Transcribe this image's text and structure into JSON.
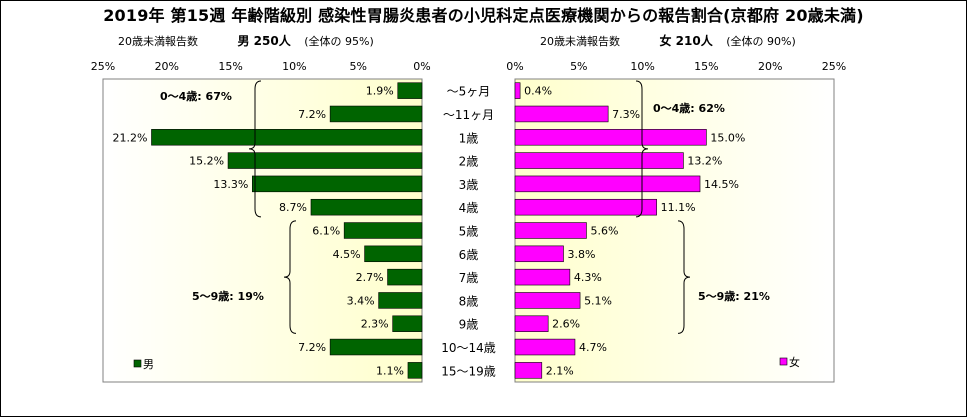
{
  "title": "2019年 第15週 年齢階級別 感染性胃腸炎患者の小児科定点医療機関からの報告割合(京都府 20歳未満)",
  "male_header": {
    "caption": "20歳未満報告数",
    "label": "男 250人",
    "ratio": "(全体の 95%)"
  },
  "female_header": {
    "caption": "20歳未満報告数",
    "label": "女 210人",
    "ratio": "(全体の 90%)"
  },
  "colors": {
    "male_bar": "#006400",
    "female_bar": "#ff00ff",
    "plot_bg": "#ffffcc"
  },
  "chart_data": [
    {
      "type": "bar",
      "orientation": "horizontal",
      "x_direction": "reversed",
      "categories": [
        "〜5ヶ月",
        "〜11ヶ月",
        "1歳",
        "2歳",
        "3歳",
        "4歳",
        "5歳",
        "6歳",
        "7歳",
        "8歳",
        "9歳",
        "10〜14歳",
        "15〜19歳"
      ],
      "series": [
        {
          "name": "男",
          "values": [
            1.9,
            7.2,
            21.2,
            15.2,
            13.3,
            8.7,
            6.1,
            4.5,
            2.7,
            3.4,
            2.3,
            7.2,
            1.1
          ],
          "labels": [
            "1.9%",
            "7.2%",
            "21.2%",
            "15.2%",
            "13.3%",
            "8.7%",
            "6.1%",
            "4.5%",
            "2.7%",
            "3.4%",
            "2.3%",
            "7.2%",
            "1.1%"
          ]
        }
      ],
      "xlim": [
        0,
        25
      ],
      "xticks": [
        "25%",
        "20%",
        "15%",
        "10%",
        "5%",
        "0%"
      ],
      "grid": false,
      "legend": "bottom-left",
      "annotations": [
        "0〜4歳: 67%",
        "5〜9歳: 19%"
      ]
    },
    {
      "type": "bar",
      "orientation": "horizontal",
      "categories": [
        "〜5ヶ月",
        "〜11ヶ月",
        "1歳",
        "2歳",
        "3歳",
        "4歳",
        "5歳",
        "6歳",
        "7歳",
        "8歳",
        "9歳",
        "10〜14歳",
        "15〜19歳"
      ],
      "series": [
        {
          "name": "女",
          "values": [
            0.4,
            7.3,
            15.0,
            13.2,
            14.5,
            11.1,
            5.6,
            3.8,
            4.3,
            5.1,
            2.6,
            4.7,
            2.1
          ],
          "labels": [
            "0.4%",
            "7.3%",
            "15.0%",
            "13.2%",
            "14.5%",
            "11.1%",
            "5.6%",
            "3.8%",
            "4.3%",
            "5.1%",
            "2.6%",
            "4.7%",
            "2.1%"
          ]
        }
      ],
      "xlim": [
        0,
        25
      ],
      "xticks": [
        "0%",
        "5%",
        "10%",
        "15%",
        "20%",
        "25%"
      ],
      "grid": false,
      "legend": "bottom-right",
      "annotations": [
        "0〜4歳: 62%",
        "5〜9歳: 21%"
      ]
    }
  ]
}
